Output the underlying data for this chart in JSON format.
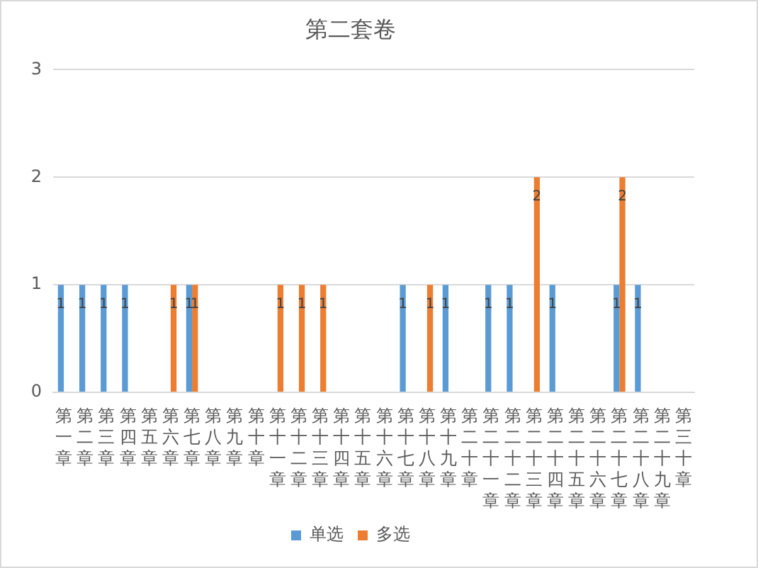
{
  "chart_data": {
    "type": "bar",
    "title": "第二套卷",
    "categories": [
      "第一章",
      "第二章",
      "第三章",
      "第四章",
      "第五章",
      "第六章",
      "第七章",
      "第八章",
      "第九章",
      "第十章",
      "第十一章",
      "第十二章",
      "第十三章",
      "第十四章",
      "第十五章",
      "第十六章",
      "第十七章",
      "第十八章",
      "第十九章",
      "第二十章",
      "第二十一章",
      "第二十二章",
      "第二十三章",
      "第二十四章",
      "第二十五章",
      "第二十六章",
      "第二十七章",
      "第二十八章",
      "第二十九章",
      "第三十章"
    ],
    "series": [
      {
        "name": "单选",
        "color": "#5b9bd5",
        "values": [
          1,
          1,
          1,
          1,
          null,
          null,
          1,
          null,
          null,
          null,
          null,
          null,
          null,
          null,
          null,
          null,
          1,
          null,
          1,
          null,
          1,
          1,
          null,
          1,
          null,
          null,
          1,
          1,
          null,
          null
        ]
      },
      {
        "name": "多选",
        "color": "#ed7d31",
        "values": [
          null,
          null,
          null,
          null,
          null,
          1,
          1,
          null,
          null,
          null,
          1,
          1,
          1,
          null,
          null,
          null,
          null,
          1,
          null,
          null,
          null,
          null,
          2,
          null,
          null,
          null,
          2,
          null,
          null,
          null
        ]
      }
    ],
    "ylim": [
      0,
      3
    ],
    "yticks": [
      0,
      1,
      2,
      3
    ],
    "grid": "y",
    "legend": "bottom",
    "data_labels": true
  }
}
